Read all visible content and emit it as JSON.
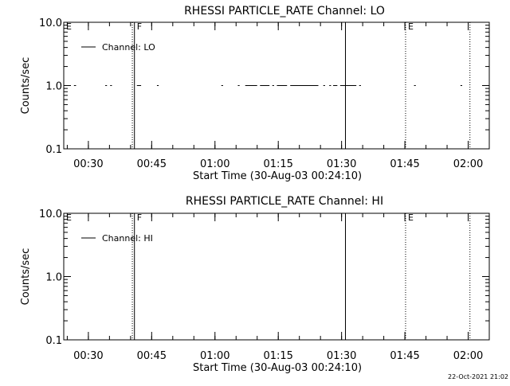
{
  "chart_data": [
    {
      "type": "line",
      "title": "RHESSI PARTICLE_RATE Channel: LO",
      "xlabel": "Start Time (30-Aug-03 00:24:10)",
      "ylabel": "Counts/sec",
      "y_scale": "log",
      "ylim": [
        0.1,
        10.0
      ],
      "y_ticks": [
        {
          "value": 0.1,
          "label": "0.1"
        },
        {
          "value": 1.0,
          "label": "1.0"
        },
        {
          "value": 10.0,
          "label": "10.0"
        }
      ],
      "xlim": [
        "00:24:10",
        "02:05:00"
      ],
      "x_ticks": [
        "00:30",
        "00:45",
        "01:00",
        "01:15",
        "01:30",
        "01:45",
        "02:00"
      ],
      "legend": {
        "label": "Channel: LO",
        "position": "top-left"
      },
      "grid": false,
      "markers": [
        {
          "time": "00:40:25",
          "label": "",
          "style": "dotted"
        },
        {
          "time": "00:40:55",
          "label": "F",
          "style": "solid"
        },
        {
          "time": "01:30:55",
          "label": "",
          "style": "solid"
        },
        {
          "time": "01:45:10",
          "label": "E",
          "style": "dotted"
        },
        {
          "time": "02:00:25",
          "label": "",
          "style": "dotted"
        },
        {
          "time": "00:24:10",
          "label": "E",
          "style": "none"
        }
      ],
      "series": [
        {
          "name": "Channel: LO",
          "segments": [
            {
              "start": "00:26:35",
              "end": "00:27:05",
              "value": 1.0
            },
            {
              "start": "00:34:00",
              "end": "00:34:25",
              "value": 1.0
            },
            {
              "start": "00:35:10",
              "end": "00:35:35",
              "value": 1.0
            },
            {
              "start": "00:41:30",
              "end": "00:42:30",
              "value": 1.0
            },
            {
              "start": "00:46:15",
              "end": "00:46:40",
              "value": 1.0
            },
            {
              "start": "01:01:30",
              "end": "01:01:55",
              "value": 1.0
            },
            {
              "start": "01:05:25",
              "end": "01:05:50",
              "value": 1.0
            },
            {
              "start": "01:07:10",
              "end": "01:10:00",
              "value": 1.0
            },
            {
              "start": "01:10:40",
              "end": "01:12:55",
              "value": 1.0
            },
            {
              "start": "01:13:35",
              "end": "01:14:00",
              "value": 1.0
            },
            {
              "start": "01:14:40",
              "end": "01:17:05",
              "value": 1.0
            },
            {
              "start": "01:17:50",
              "end": "01:24:30",
              "value": 1.0
            },
            {
              "start": "01:25:40",
              "end": "01:26:05",
              "value": 1.0
            },
            {
              "start": "01:27:05",
              "end": "01:27:30",
              "value": 1.0
            },
            {
              "start": "01:28:00",
              "end": "01:29:00",
              "value": 1.0
            },
            {
              "start": "01:29:40",
              "end": "01:33:30",
              "value": 1.0
            },
            {
              "start": "01:34:10",
              "end": "01:34:35",
              "value": 1.0
            },
            {
              "start": "01:47:10",
              "end": "01:47:35",
              "value": 1.0
            },
            {
              "start": "01:58:10",
              "end": "01:58:35",
              "value": 1.0
            }
          ]
        }
      ]
    },
    {
      "type": "line",
      "title": "RHESSI PARTICLE_RATE Channel: HI",
      "xlabel": "Start Time (30-Aug-03 00:24:10)",
      "ylabel": "Counts/sec",
      "y_scale": "log",
      "ylim": [
        0.1,
        10.0
      ],
      "y_ticks": [
        {
          "value": 0.1,
          "label": "0.1"
        },
        {
          "value": 1.0,
          "label": "1.0"
        },
        {
          "value": 10.0,
          "label": "10.0"
        }
      ],
      "xlim": [
        "00:24:10",
        "02:05:00"
      ],
      "x_ticks": [
        "00:30",
        "00:45",
        "01:00",
        "01:15",
        "01:30",
        "01:45",
        "02:00"
      ],
      "legend": {
        "label": "Channel: HI",
        "position": "top-left"
      },
      "grid": false,
      "markers": [
        {
          "time": "00:40:25",
          "label": "",
          "style": "dotted"
        },
        {
          "time": "00:40:55",
          "label": "F",
          "style": "solid"
        },
        {
          "time": "01:30:55",
          "label": "",
          "style": "solid"
        },
        {
          "time": "01:45:10",
          "label": "E",
          "style": "dotted"
        },
        {
          "time": "02:00:25",
          "label": "",
          "style": "dotted"
        },
        {
          "time": "00:24:10",
          "label": "E",
          "style": "none"
        }
      ],
      "series": [
        {
          "name": "Channel: HI",
          "segments": []
        }
      ]
    }
  ],
  "footer": {
    "timestamp": "22-Oct-2021 21:02"
  }
}
